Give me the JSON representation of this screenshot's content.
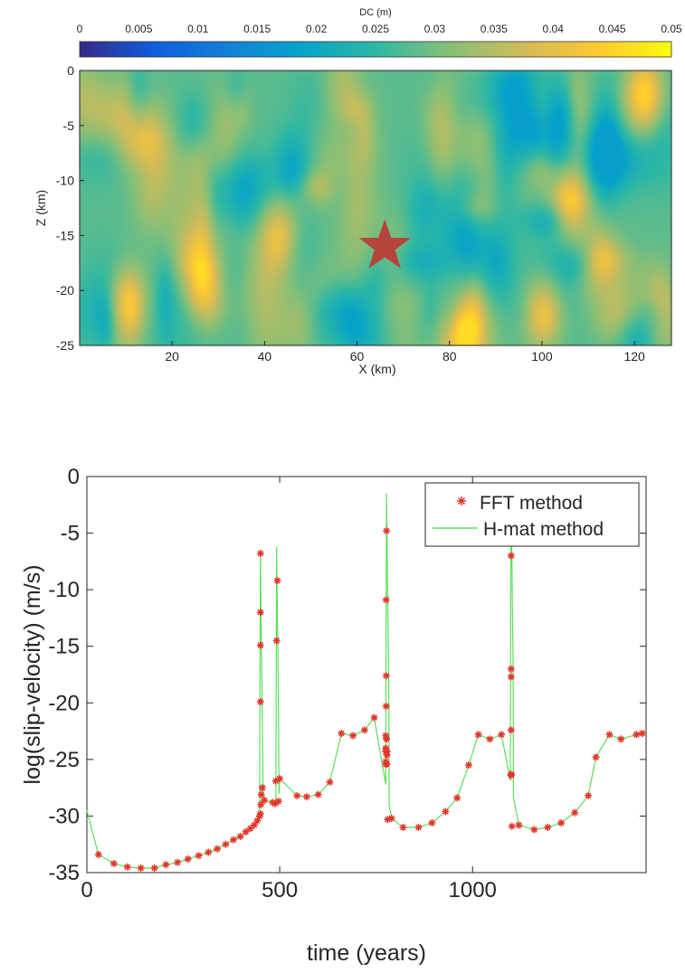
{
  "chart_data": [
    {
      "type": "heatmap",
      "colorbar": {
        "label": "DC (m)",
        "range": [
          0,
          0.05
        ],
        "ticks": [
          "0",
          "0.005",
          "0.01",
          "0.015",
          "0.02",
          "0.025",
          "0.03",
          "0.035",
          "0.04",
          "0.045",
          "0.05"
        ],
        "placement": "top",
        "colormap": [
          "#352a87",
          "#0f5cdd",
          "#1481d6",
          "#06a4ca",
          "#2eb7a4",
          "#87bf77",
          "#d1bb59",
          "#fec832",
          "#f9fb0e"
        ]
      },
      "xlabel": "X (km)",
      "ylabel": "Z (km)",
      "xlim": [
        0,
        128
      ],
      "ylim": [
        -25,
        0
      ],
      "xticks": [
        "20",
        "40",
        "60",
        "80",
        "100",
        "120"
      ],
      "yticks": [
        "0",
        "-5",
        "-10",
        "-15",
        "-20",
        "-25"
      ],
      "marker": {
        "shape": "star",
        "x": 66,
        "z": -16,
        "color": "#b5443c"
      },
      "field": {
        "description": "spatially random DC field, mostly 0.02-0.035 m with patches up to ~0.045 m",
        "mean": 0.028,
        "min": 0.018,
        "max": 0.046,
        "patches": [
          {
            "x": 10,
            "z": -21,
            "v": 0.042
          },
          {
            "x": 27,
            "z": -20,
            "v": 0.043
          },
          {
            "x": 82,
            "z": -24,
            "v": 0.046
          },
          {
            "x": 100,
            "z": -22,
            "v": 0.043
          },
          {
            "x": 106,
            "z": -12,
            "v": 0.044
          },
          {
            "x": 122,
            "z": -2,
            "v": 0.045
          },
          {
            "x": 112,
            "z": -17,
            "v": 0.042
          },
          {
            "x": 13,
            "z": -6,
            "v": 0.04
          },
          {
            "x": 43,
            "z": -15,
            "v": 0.039
          },
          {
            "x": 58,
            "z": -23,
            "v": 0.02
          },
          {
            "x": 25,
            "z": -5,
            "v": 0.021
          },
          {
            "x": 95,
            "z": -6,
            "v": 0.021
          },
          {
            "x": 46,
            "z": -8,
            "v": 0.022
          },
          {
            "x": 75,
            "z": -13,
            "v": 0.021
          }
        ]
      }
    },
    {
      "type": "line",
      "xlabel": "time (years)",
      "ylabel": "log(slip-velocity) (m/s)",
      "xlim": [
        0,
        1450
      ],
      "ylim": [
        -35,
        0
      ],
      "xticks": [
        0,
        500,
        1000
      ],
      "yticks": [
        0,
        -5,
        -10,
        -15,
        -20,
        -25,
        -30,
        -35
      ],
      "legend": {
        "placement": "top-right"
      },
      "series": [
        {
          "name": "FFT method",
          "style": "markers",
          "marker": "*",
          "color": "#e2352a",
          "x": [
            30,
            70,
            105,
            140,
            175,
            205,
            235,
            262,
            290,
            315,
            338,
            360,
            380,
            398,
            412,
            424,
            434,
            442,
            448,
            450,
            450,
            450,
            450,
            450,
            451,
            452,
            455,
            460,
            482,
            488,
            490,
            492,
            494,
            497,
            500,
            545,
            570,
            600,
            630,
            660,
            690,
            720,
            745,
            775,
            775,
            775,
            775,
            775,
            776,
            776,
            776,
            777,
            777,
            778,
            778,
            778,
            780,
            790,
            820,
            860,
            895,
            930,
            960,
            990,
            1015,
            1045,
            1075,
            1100,
            1100,
            1100,
            1100,
            1100,
            1100,
            1100,
            1100,
            1102,
            1120,
            1160,
            1195,
            1230,
            1265,
            1300,
            1320,
            1355,
            1385,
            1425,
            1440
          ],
          "y": [
            -33.4,
            -34.2,
            -34.5,
            -34.6,
            -34.6,
            -34.3,
            -34.1,
            -33.8,
            -33.5,
            -33.2,
            -32.9,
            -32.5,
            -32.1,
            -31.8,
            -31.4,
            -31.1,
            -30.8,
            -30.4,
            -30.0,
            -29.8,
            -19.9,
            -14.9,
            -12.0,
            -6.8,
            -29.0,
            -28.1,
            -27.5,
            -28.6,
            -28.8,
            -28.9,
            -26.9,
            -14.5,
            -9.2,
            -28.7,
            -26.7,
            -28.2,
            -28.3,
            -28.1,
            -27.0,
            -22.7,
            -22.9,
            -22.4,
            -21.3,
            -25.4,
            -25.2,
            -24.3,
            -24.0,
            -22.9,
            -20.3,
            -17.6,
            -10.9,
            -4.8,
            -23.2,
            -24.3,
            -24.6,
            -25.4,
            -30.3,
            -30.2,
            -31.0,
            -31.0,
            -30.6,
            -29.6,
            -28.4,
            -25.5,
            -22.8,
            -23.2,
            -22.8,
            -26.3,
            -22.4,
            -17.7,
            -17.0,
            -7.0,
            -5.6,
            -1.1,
            -26.4,
            -30.9,
            -30.8,
            -31.2,
            -31.0,
            -30.6,
            -29.7,
            -28.2,
            -24.8,
            -22.8,
            -23.2,
            -22.8,
            -22.7
          ]
        },
        {
          "name": "H-mat method",
          "style": "line",
          "color": "#5ae05a"
        }
      ]
    }
  ]
}
